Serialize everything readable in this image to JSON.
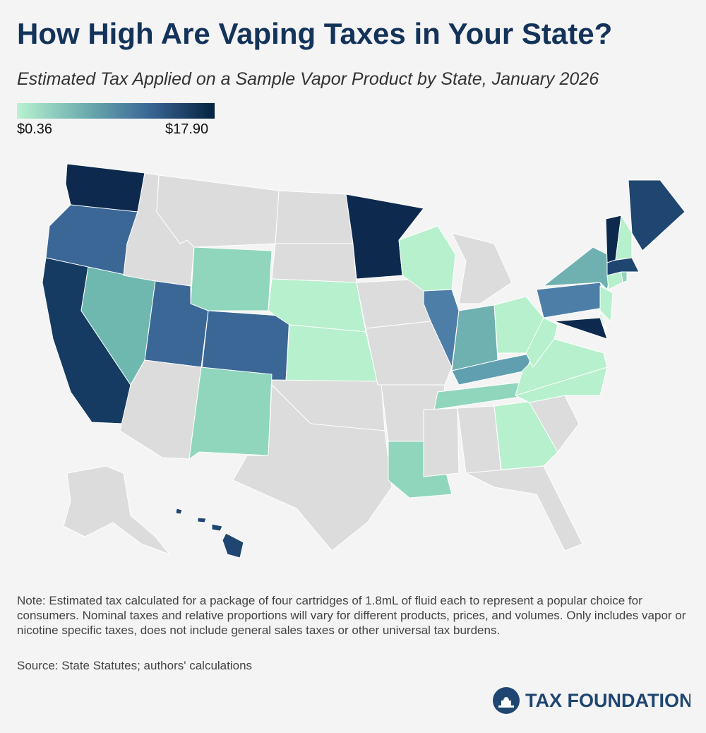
{
  "header": {
    "title": "How High Are Vaping Taxes in Your State?",
    "subtitle": "Estimated Tax Applied on a Sample Vapor Product by State, January 2026"
  },
  "legend": {
    "min_label": "$0.36",
    "max_label": "$17.90",
    "colors": [
      "#b8f2d0",
      "#6fb0b0",
      "#3a6796",
      "#06223f"
    ]
  },
  "footer": {
    "note": "Note: Estimated tax calculated for a package of four cartridges of 1.8mL of fluid each to represent a popular choice for consumers. Nominal taxes and relative proportions will vary for different products, prices, and volumes. Only includes vapor or nicotine specific taxes, does not include general sales taxes or other universal tax burdens.",
    "source": "Source: State Statutes; authors' calculations",
    "logo": "TAX FOUNDATION"
  }
}
